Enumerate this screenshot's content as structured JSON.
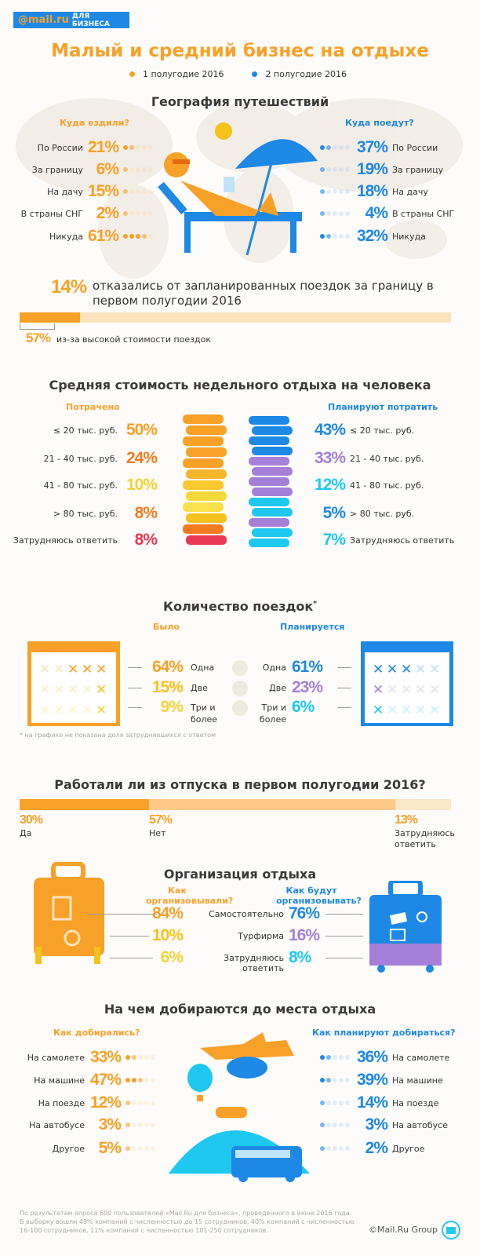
{
  "logo": {
    "brand": "@mail.ru",
    "suffix": "ДЛЯ БИЗНЕСА"
  },
  "title": "Малый и средний бизнес на отдыхе",
  "legend": [
    {
      "label": "1 полугодие 2016",
      "color": "#f7a128"
    },
    {
      "label": "2 полугодие 2016",
      "color": "#1e88e5"
    }
  ],
  "geo": {
    "heading": "География путешествий",
    "left_title": "Куда ездили?",
    "right_title": "Куда поедут?",
    "left": [
      {
        "label": "По России",
        "value": "21%",
        "n": 21
      },
      {
        "label": "За границу",
        "value": "6%",
        "n": 6
      },
      {
        "label": "На дачу",
        "value": "15%",
        "n": 15
      },
      {
        "label": "В страны СНГ",
        "value": "2%",
        "n": 2
      },
      {
        "label": "Никуда",
        "value": "61%",
        "n": 61
      }
    ],
    "right": [
      {
        "label": "По России",
        "value": "37%",
        "n": 37
      },
      {
        "label": "За границу",
        "value": "19%",
        "n": 19
      },
      {
        "label": "На дачу",
        "value": "18%",
        "n": 18
      },
      {
        "label": "В страны СНГ",
        "value": "4%",
        "n": 4
      },
      {
        "label": "Никуда",
        "value": "32%",
        "n": 32
      }
    ],
    "refused_pct": "14%",
    "refused_text": "отказались от запланированных поездок за границу в первом полугодии 2016",
    "refused_progress": 14,
    "cost_pct": "57%",
    "cost_text": "из-за высокой стоимости поездок"
  },
  "cost": {
    "heading": "Средняя стоимость недельного отдыха на человека",
    "left_title": "Потрачено",
    "right_title": "Планируют потратить",
    "left": [
      {
        "label": "≤ 20 тыс. руб.",
        "value": "50%"
      },
      {
        "label": "21 - 40 тыс. руб.",
        "value": "24%"
      },
      {
        "label": "41 - 80 тыс. руб.",
        "value": "10%"
      },
      {
        "label": "> 80 тыс. руб.",
        "value": "8%"
      },
      {
        "label": "Затрудняюсь ответить",
        "value": "8%"
      }
    ],
    "right": [
      {
        "label": "≤ 20 тыс. руб.",
        "value": "43%"
      },
      {
        "label": "21 - 40 тыс. руб.",
        "value": "33%"
      },
      {
        "label": "41 - 80 тыс. руб.",
        "value": "12%"
      },
      {
        "label": "> 80 тыс. руб.",
        "value": "5%"
      },
      {
        "label": "Затрудняюсь ответить",
        "value": "7%"
      }
    ]
  },
  "trips": {
    "heading": "Количество поездок",
    "asterisk": "*",
    "left_title": "Было",
    "right_title": "Планируется",
    "rows": [
      {
        "label": "Одна",
        "left": "64%",
        "right": "61%"
      },
      {
        "label": "Две",
        "left": "15%",
        "right": "23%"
      },
      {
        "label": "Три и более",
        "left": "9%",
        "right": "6%"
      }
    ],
    "footnote": "* на графике не показана доля затруднившихся с ответом"
  },
  "work": {
    "heading": "Работали ли из отпуска в первом полугодии 2016?",
    "items": [
      {
        "value": "30%",
        "label": "Да",
        "n": 30
      },
      {
        "value": "57%",
        "label": "Нет",
        "n": 57
      },
      {
        "value": "13%",
        "label": "Затрудняюсь ответить",
        "n": 13
      }
    ]
  },
  "org": {
    "heading": "Организация отдыха",
    "left_title": "Как организовывали?",
    "right_title": "Как будут организовывать?",
    "rows": [
      {
        "label": "Самостоятельно",
        "left": "84%",
        "right": "76%"
      },
      {
        "label": "Турфирма",
        "left": "10%",
        "right": "16%"
      },
      {
        "label": "Затрудняюсь ответить",
        "left": "6%",
        "right": "8%"
      }
    ]
  },
  "transport": {
    "heading": "На чем добираются до места отдыха",
    "left_title": "Как добирались?",
    "right_title": "Как планируют добираться?",
    "left": [
      {
        "label": "На самолете",
        "value": "33%",
        "n": 33
      },
      {
        "label": "На машине",
        "value": "47%",
        "n": 47
      },
      {
        "label": "На поезде",
        "value": "12%",
        "n": 12
      },
      {
        "label": "На автобусе",
        "value": "3%",
        "n": 3
      },
      {
        "label": "Другое",
        "value": "5%",
        "n": 5
      }
    ],
    "right": [
      {
        "label": "На самолете",
        "value": "36%",
        "n": 36
      },
      {
        "label": "На машине",
        "value": "39%",
        "n": 39
      },
      {
        "label": "На поезде",
        "value": "14%",
        "n": 14
      },
      {
        "label": "На автобусе",
        "value": "3%",
        "n": 3
      },
      {
        "label": "Другое",
        "value": "2%",
        "n": 2
      }
    ]
  },
  "footer": {
    "note": "По результатам опроса 600 пользователей «Mail.Ru для бизнеса», проведенного в июне 2016 года. В выборку вошли 49% компаний с численностью до 15 сотрудников, 40% компаний с численностью 16-100 сотрудников, 11% компаний с численностью 101-250 сотрудников.",
    "copyright": "©Mail.Ru Group"
  },
  "colors": {
    "orange": "#f7a128",
    "blue": "#1e88e5",
    "purple": "#a67fd8",
    "cyan": "#1ec8f0"
  }
}
